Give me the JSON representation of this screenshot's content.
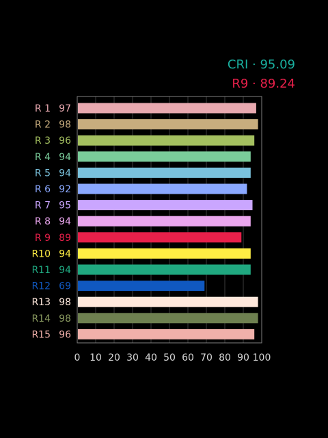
{
  "summary": {
    "cri_label": "CRI · 95.09",
    "cri_color": "#1ab0a0",
    "r9_label": "R9 · 89.24",
    "r9_color": "#e8204a"
  },
  "chart_data": {
    "type": "bar",
    "orientation": "horizontal",
    "categories": [
      "R 1",
      "R 2",
      "R 3",
      "R 4",
      "R 5",
      "R 6",
      "R 7",
      "R 8",
      "R 9",
      "R10",
      "R11",
      "R12",
      "R13",
      "R14",
      "R15"
    ],
    "value_labels": [
      "97",
      "98",
      "96",
      "94",
      "94",
      "92",
      "95",
      "94",
      "89",
      "94",
      "94",
      "69",
      "98",
      "98",
      "96"
    ],
    "values": [
      97,
      98,
      96,
      94,
      94,
      92,
      95,
      94,
      89,
      94,
      94,
      69,
      98,
      98,
      96
    ],
    "colors": [
      "#e8a9b0",
      "#c8ad7e",
      "#a4c060",
      "#7acc9a",
      "#7ac2dd",
      "#8aa8ff",
      "#caa6ff",
      "#eaa6ee",
      "#e8204a",
      "#ffee44",
      "#20a880",
      "#1058c0",
      "#ffe8dc",
      "#6e8050",
      "#f0b0aa"
    ],
    "label_colors": [
      "#e8a9b0",
      "#c8ad7e",
      "#a4c060",
      "#7acc9a",
      "#7ac2dd",
      "#8aa8ff",
      "#caa6ff",
      "#eaa6ee",
      "#e8204a",
      "#ffee44",
      "#20a880",
      "#1058c0",
      "#ffe8dc",
      "#8a9a60",
      "#f0b0aa"
    ],
    "xticks": [
      "0",
      "10",
      "20",
      "30",
      "40",
      "50",
      "60",
      "70",
      "80",
      "90",
      "100"
    ],
    "xlim": [
      0,
      100
    ],
    "grid": true,
    "title": "",
    "xlabel": "",
    "ylabel": ""
  }
}
